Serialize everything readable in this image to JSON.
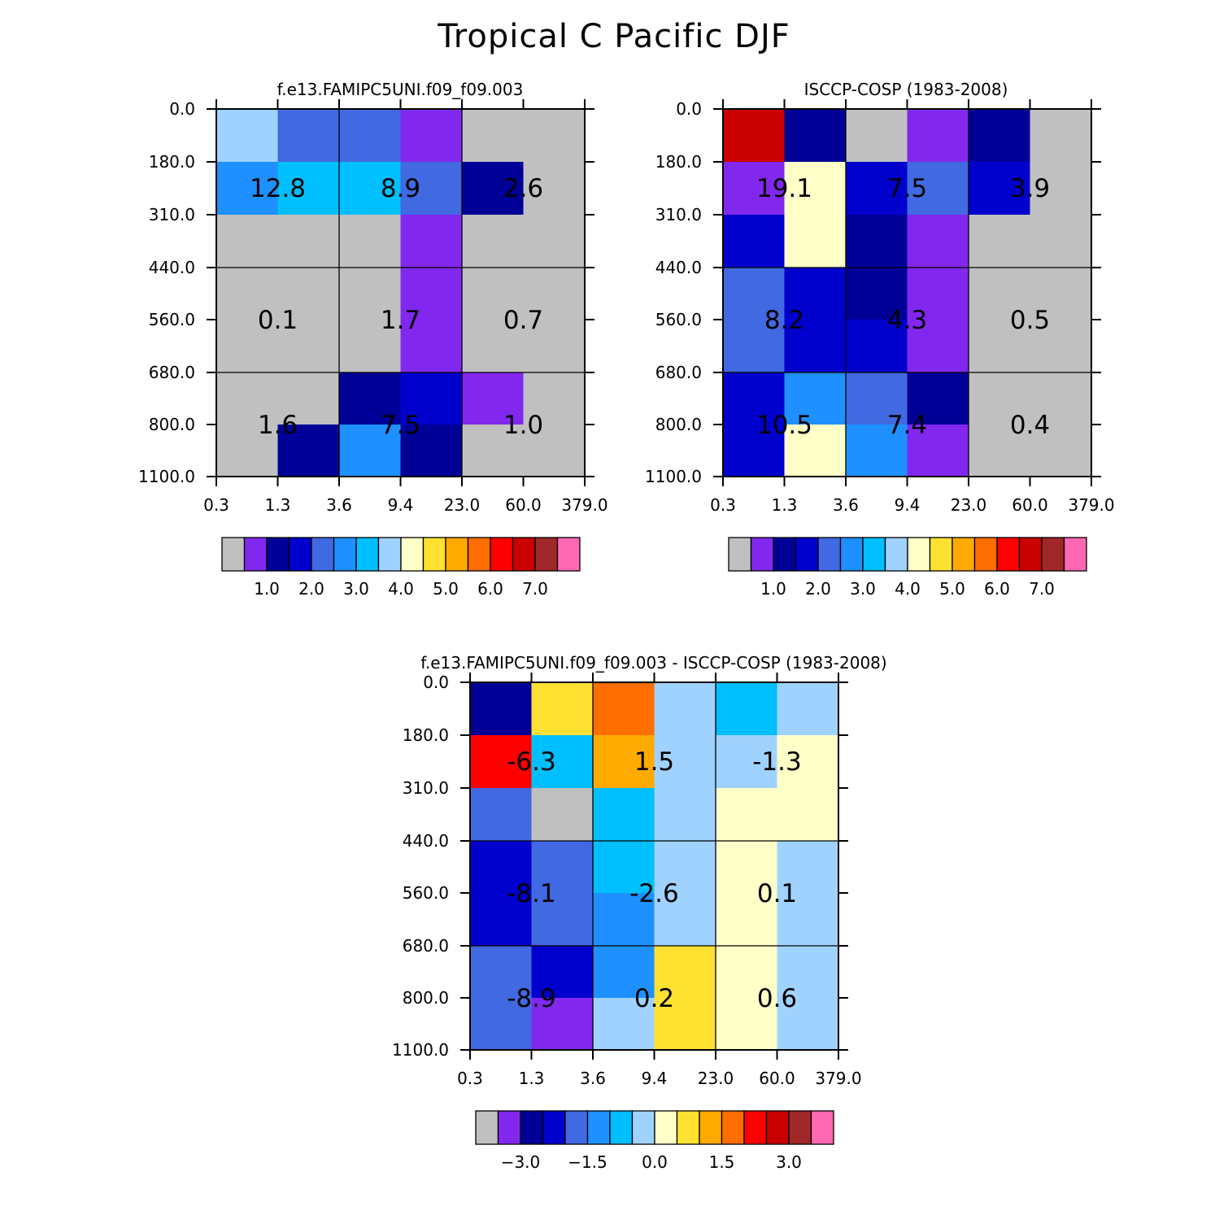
{
  "title": "Tropical C Pacific DJF",
  "x_tick_labels": [
    "0.3",
    "1.3",
    "3.6",
    "9.4",
    "23.0",
    "60.0",
    "379.0"
  ],
  "y_tick_labels": [
    "0.0",
    "180.0",
    "310.0",
    "440.0",
    "560.0",
    "680.0",
    "800.0",
    "1100.0"
  ],
  "abs_levels": [
    "1.0",
    "2.0",
    "3.0",
    "4.0",
    "5.0",
    "6.0",
    "7.0"
  ],
  "diff_levels": [
    "-3.0",
    "-1.5",
    "0.0",
    "1.5",
    "3.0"
  ],
  "palette": [
    "#c0c0c0",
    "#8228ee",
    "#000096",
    "#0000cd",
    "#4169e1",
    "#1e90ff",
    "#00bfff",
    "#a0d2ff",
    "#ffffc8",
    "#ffe132",
    "#ffaa00",
    "#ff6e00",
    "#ff0000",
    "#c80000",
    "#a02828",
    "#ff69b4"
  ],
  "chart_data": [
    {
      "type": "heatmap",
      "title": "f.e13.FAMIPC5UNI.f09_f09.003",
      "xlabel": "",
      "ylabel": "",
      "x_bins": [
        "0.3",
        "1.3",
        "3.6",
        "9.4",
        "23.0",
        "60.0",
        "379.0"
      ],
      "y_bins": [
        "0.0",
        "180.0",
        "310.0",
        "440.0",
        "560.0",
        "680.0",
        "800.0",
        "1100.0"
      ],
      "cell_color_index": [
        [
          7,
          4,
          4,
          1,
          0,
          0
        ],
        [
          5,
          6,
          6,
          4,
          2,
          0
        ],
        [
          0,
          0,
          0,
          1,
          0,
          0
        ],
        [
          0,
          0,
          0,
          1,
          0,
          0
        ],
        [
          0,
          0,
          0,
          1,
          0,
          0
        ],
        [
          0,
          0,
          2,
          3,
          1,
          0
        ],
        [
          0,
          2,
          5,
          2,
          0,
          0
        ]
      ],
      "box_sums": [
        [
          "12.8",
          "8.9",
          "2.6"
        ],
        [
          "0.1",
          "1.7",
          "0.7"
        ],
        [
          "1.6",
          "7.5",
          "1.0"
        ]
      ],
      "colorbar_labels": [
        "1.0",
        "2.0",
        "3.0",
        "4.0",
        "5.0",
        "6.0",
        "7.0"
      ]
    },
    {
      "type": "heatmap",
      "title": "ISCCP-COSP (1983-2008)",
      "xlabel": "",
      "ylabel": "",
      "x_bins": [
        "0.3",
        "1.3",
        "3.6",
        "9.4",
        "23.0",
        "60.0",
        "379.0"
      ],
      "y_bins": [
        "0.0",
        "180.0",
        "310.0",
        "440.0",
        "560.0",
        "680.0",
        "800.0",
        "1100.0"
      ],
      "cell_color_index": [
        [
          13,
          2,
          0,
          1,
          2,
          0
        ],
        [
          1,
          8,
          3,
          4,
          3,
          0
        ],
        [
          3,
          8,
          2,
          1,
          0,
          0
        ],
        [
          4,
          3,
          2,
          1,
          0,
          0
        ],
        [
          4,
          3,
          3,
          1,
          0,
          0
        ],
        [
          3,
          5,
          4,
          2,
          0,
          0
        ],
        [
          3,
          8,
          5,
          1,
          0,
          0
        ]
      ],
      "box_sums": [
        [
          "19.1",
          "7.5",
          "3.9"
        ],
        [
          "8.2",
          "4.3",
          "0.5"
        ],
        [
          "10.5",
          "7.4",
          "0.4"
        ]
      ],
      "colorbar_labels": [
        "1.0",
        "2.0",
        "3.0",
        "4.0",
        "5.0",
        "6.0",
        "7.0"
      ]
    },
    {
      "type": "heatmap",
      "title": "f.e13.FAMIPC5UNI.f09_f09.003 - ISCCP-COSP (1983-2008)",
      "xlabel": "",
      "ylabel": "",
      "x_bins": [
        "0.3",
        "1.3",
        "3.6",
        "9.4",
        "23.0",
        "60.0",
        "379.0"
      ],
      "y_bins": [
        "0.0",
        "180.0",
        "310.0",
        "440.0",
        "560.0",
        "680.0",
        "800.0",
        "1100.0"
      ],
      "cell_color_index": [
        [
          2,
          9,
          11,
          7,
          6,
          7
        ],
        [
          12,
          6,
          10,
          7,
          7,
          8
        ],
        [
          4,
          0,
          6,
          7,
          8,
          8
        ],
        [
          3,
          4,
          6,
          7,
          8,
          7
        ],
        [
          3,
          4,
          5,
          7,
          8,
          7
        ],
        [
          4,
          3,
          5,
          9,
          8,
          7
        ],
        [
          4,
          1,
          7,
          9,
          8,
          7
        ]
      ],
      "box_sums": [
        [
          "-6.3",
          "1.5",
          "-1.3"
        ],
        [
          "-8.1",
          "-2.6",
          "0.1"
        ],
        [
          "-8.9",
          "0.2",
          "0.6"
        ]
      ],
      "colorbar_labels": [
        "-3.0",
        "-1.5",
        "0.0",
        "1.5",
        "3.0"
      ]
    }
  ]
}
